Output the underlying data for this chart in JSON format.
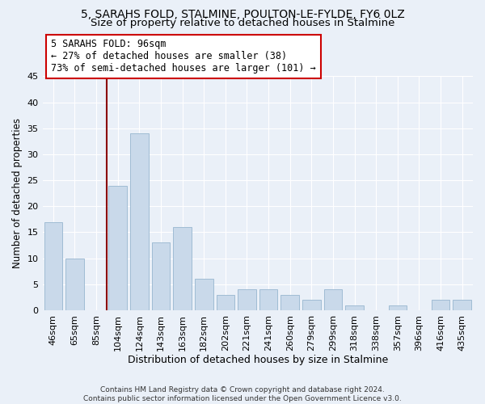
{
  "title1": "5, SARAHS FOLD, STALMINE, POULTON-LE-FYLDE, FY6 0LZ",
  "title2": "Size of property relative to detached houses in Stalmine",
  "xlabel": "Distribution of detached houses by size in Stalmine",
  "ylabel": "Number of detached properties",
  "categories": [
    "46sqm",
    "65sqm",
    "85sqm",
    "104sqm",
    "124sqm",
    "143sqm",
    "163sqm",
    "182sqm",
    "202sqm",
    "221sqm",
    "241sqm",
    "260sqm",
    "279sqm",
    "299sqm",
    "318sqm",
    "338sqm",
    "357sqm",
    "396sqm",
    "416sqm",
    "435sqm"
  ],
  "values": [
    17,
    10,
    0,
    24,
    34,
    13,
    16,
    6,
    3,
    4,
    4,
    3,
    2,
    4,
    1,
    0,
    1,
    0,
    2,
    2
  ],
  "bar_color": "#c9d9ea",
  "bar_edge_color": "#a0bcd4",
  "bg_color": "#eaf0f8",
  "grid_color": "#ffffff",
  "vline_color": "#8b0000",
  "annotation_line1": "5 SARAHS FOLD: 96sqm",
  "annotation_line2": "← 27% of detached houses are smaller (38)",
  "annotation_line3": "73% of semi-detached houses are larger (101) →",
  "annotation_box_color": "#ffffff",
  "annotation_box_edge": "#cc0000",
  "ylim": [
    0,
    45
  ],
  "yticks": [
    0,
    5,
    10,
    15,
    20,
    25,
    30,
    35,
    40,
    45
  ],
  "footer": "Contains HM Land Registry data © Crown copyright and database right 2024.\nContains public sector information licensed under the Open Government Licence v3.0.",
  "title1_fontsize": 10,
  "title2_fontsize": 9.5,
  "xlabel_fontsize": 9,
  "ylabel_fontsize": 8.5,
  "tick_fontsize": 8,
  "annotation_fontsize": 8.5,
  "footer_fontsize": 6.5
}
